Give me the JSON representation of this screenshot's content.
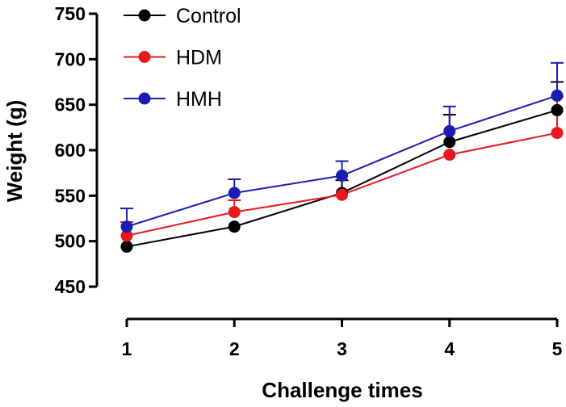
{
  "chart_data": {
    "type": "line",
    "title": "",
    "xlabel": "Challenge times",
    "ylabel": "Weight (g)",
    "x": [
      1,
      2,
      3,
      4,
      5
    ],
    "x_ticks": [
      "1",
      "2",
      "3",
      "4",
      "5"
    ],
    "xlim": [
      1,
      5
    ],
    "ylim": [
      450,
      750
    ],
    "y_ticks": [
      "450",
      "500",
      "550",
      "600",
      "650",
      "700",
      "750"
    ],
    "y_tick_values": [
      450,
      500,
      550,
      600,
      650,
      700,
      750
    ],
    "grid": false,
    "legend_position": "top-left",
    "error_bars": "upper",
    "series": [
      {
        "name": "Control",
        "color": "#000000",
        "values": [
          494,
          516,
          553,
          609,
          644
        ],
        "errors": [
          0,
          0,
          14,
          30,
          31
        ]
      },
      {
        "name": "HDM",
        "color": "#e8181c",
        "values": [
          506,
          532,
          551,
          595,
          619
        ],
        "errors": [
          15,
          13,
          0,
          0,
          40
        ]
      },
      {
        "name": "HMH",
        "color": "#1c1cb0",
        "values": [
          516,
          553,
          572,
          621,
          660
        ],
        "errors": [
          20,
          15,
          16,
          27,
          36
        ]
      }
    ]
  }
}
